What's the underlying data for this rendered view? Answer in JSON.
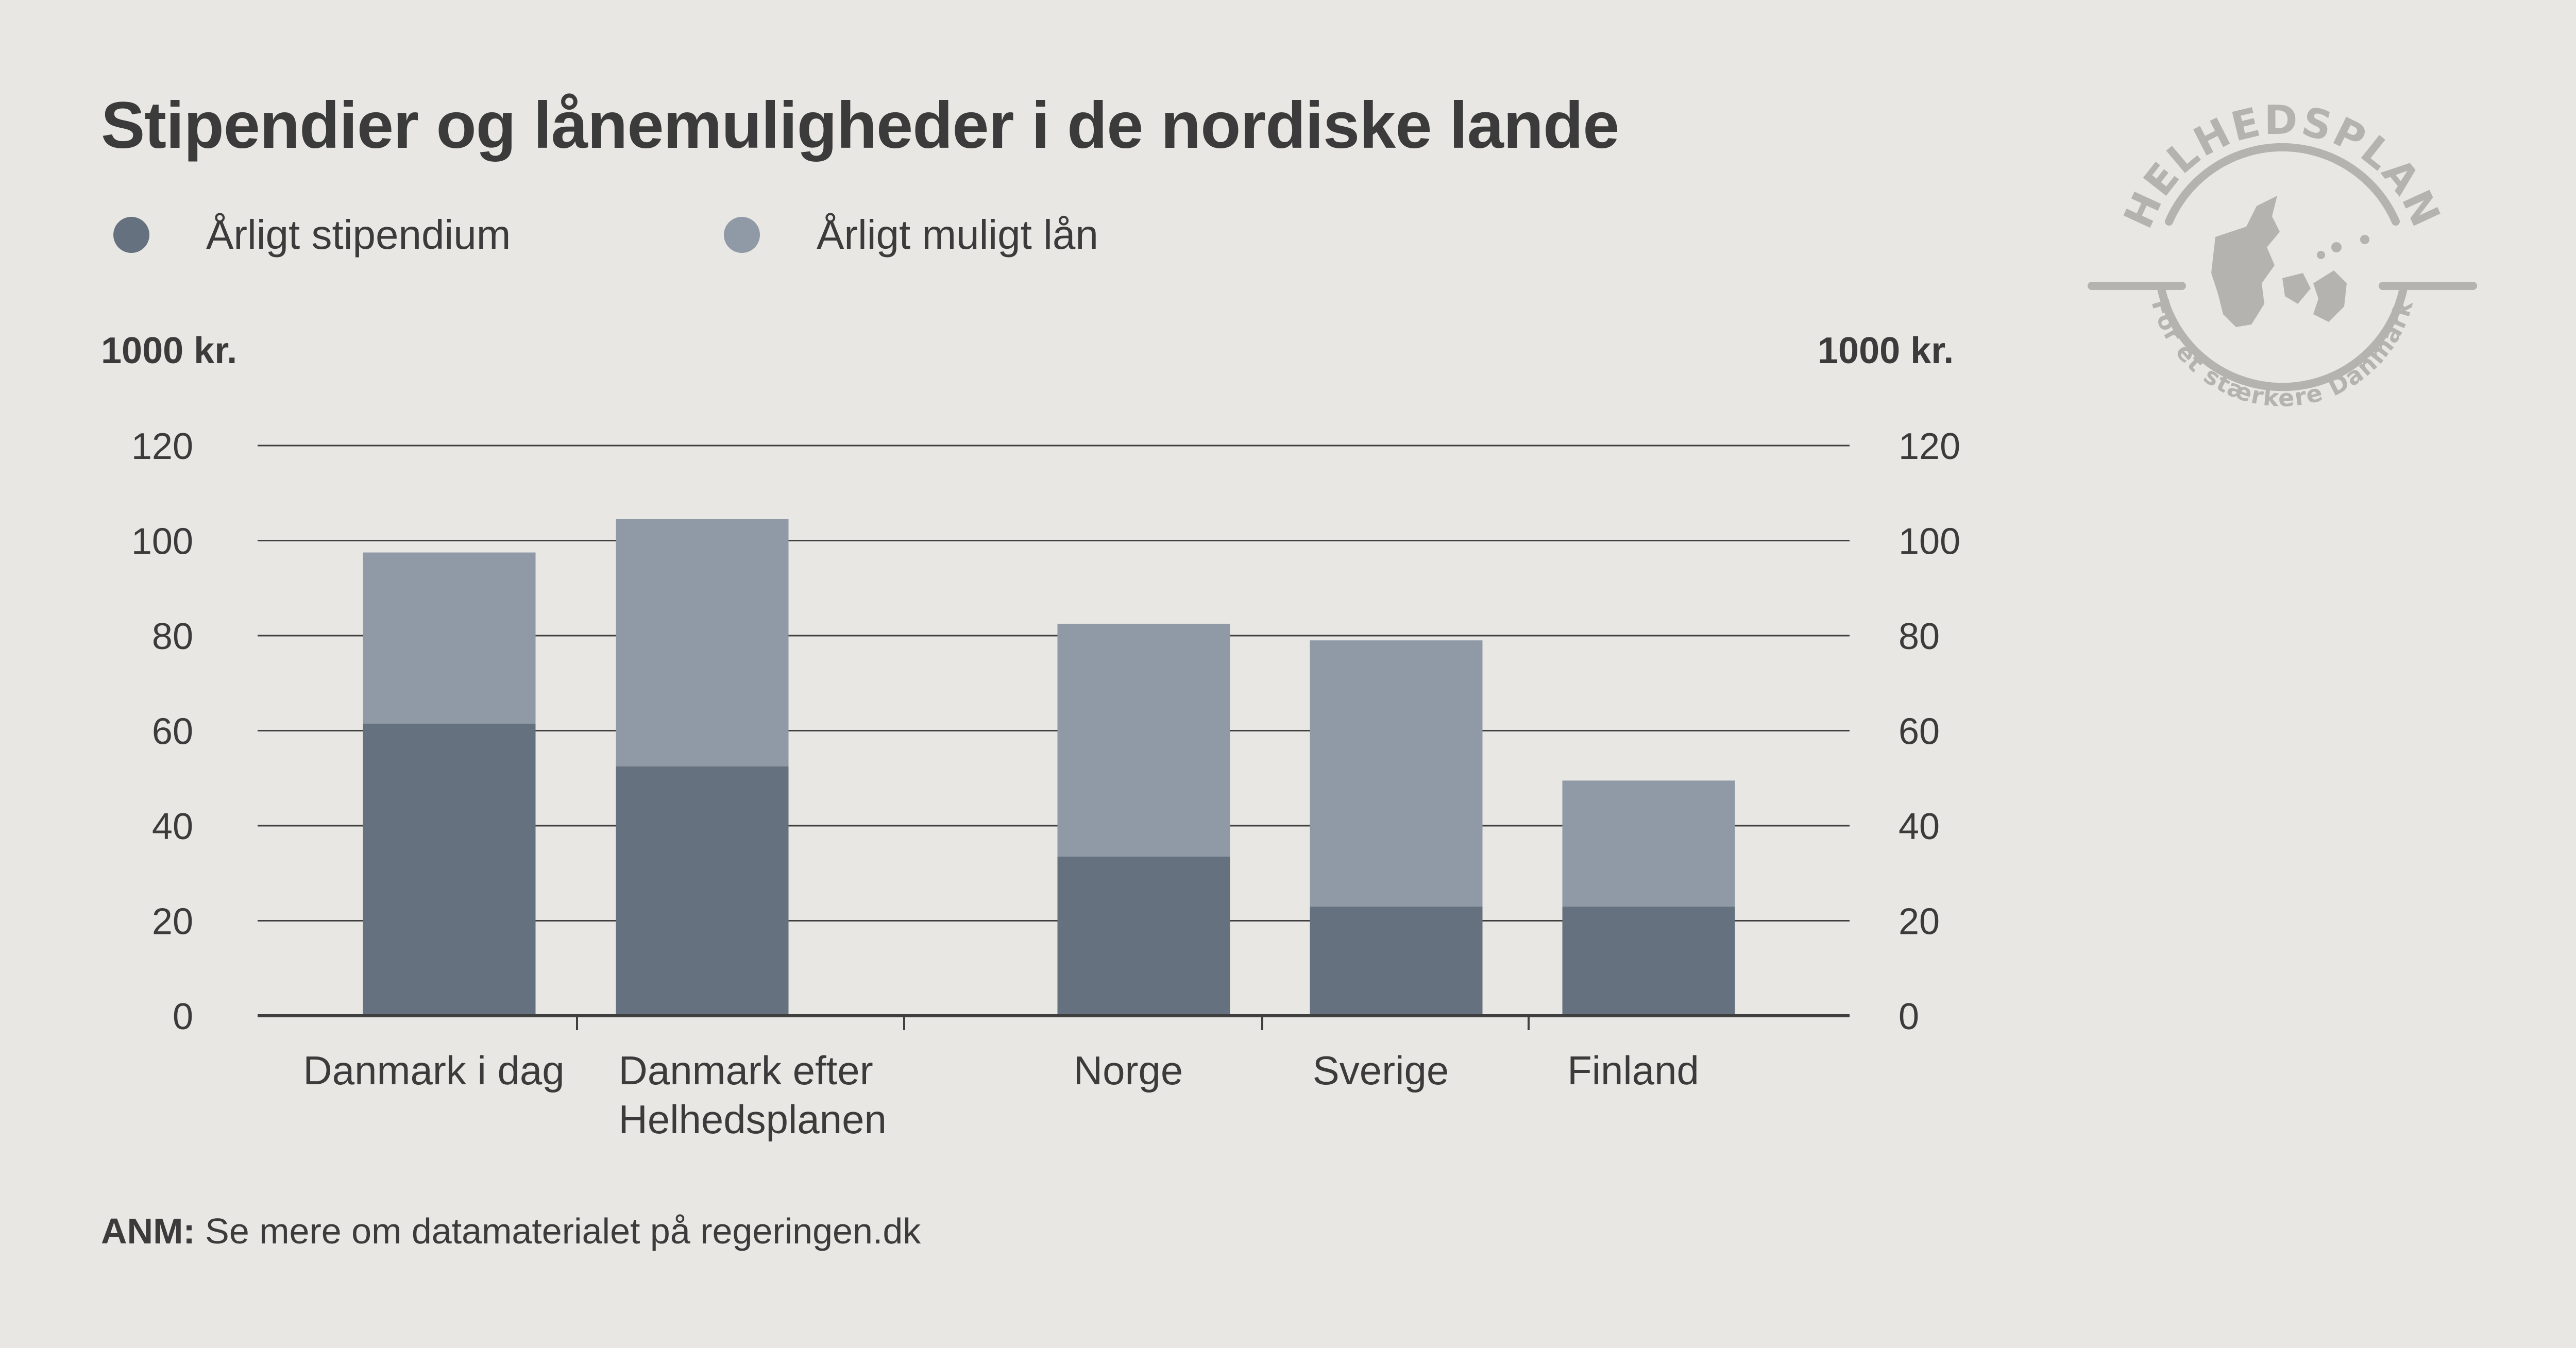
{
  "title": "Stipendier og lånemuligheder i de nordiske lande",
  "legend": [
    {
      "label": "Årligt stipendium",
      "color": "#65717e"
    },
    {
      "label": "Årligt muligt lån",
      "color": "#8f9aa6"
    }
  ],
  "unit_left": "1000 kr.",
  "unit_right": "1000 kr.",
  "note": {
    "prefix": "ANM:",
    "text": " Se mere om datamaterialet på regeringen.dk"
  },
  "stamp": {
    "top_text": "HELHEDSPLAN",
    "bottom_text": "For et stærkere Danmark"
  },
  "chart_data": {
    "type": "bar",
    "stacked": true,
    "categories": [
      "Danmark i dag",
      "Danmark efter Helhedsplanen",
      "Norge",
      "Sverige",
      "Finland"
    ],
    "category_lines": [
      [
        "Danmark i dag"
      ],
      [
        "Danmark efter",
        "Helhedsplanen"
      ],
      [
        "Norge"
      ],
      [
        "Sverige"
      ],
      [
        "Finland"
      ]
    ],
    "series": [
      {
        "name": "Årligt stipendium",
        "values": [
          61.5,
          52.5,
          33.5,
          23,
          23
        ],
        "color": "#65717e"
      },
      {
        "name": "Årligt muligt lån",
        "values": [
          36,
          52,
          49,
          56,
          26.5
        ],
        "color": "#8f9aa6"
      }
    ],
    "yticks": [
      0,
      20,
      40,
      60,
      80,
      100,
      120
    ],
    "ylim": [
      0,
      120
    ],
    "ylabel_left": "1000 kr.",
    "ylabel_right": "1000 kr.",
    "grid": true,
    "legend_position": "top-left"
  }
}
